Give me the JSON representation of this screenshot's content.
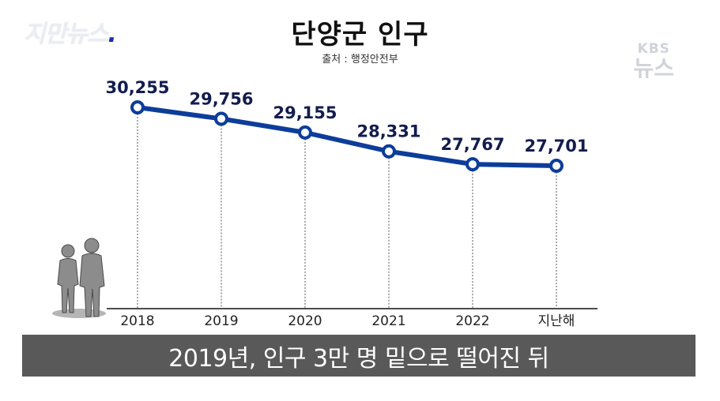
{
  "overlay": {
    "program_logo": "지만뉴스",
    "broadcaster": "KBS",
    "broadcaster_sub": "뉴스"
  },
  "header": {
    "title": "단양군 인구",
    "source": "출처 : 행정안전부"
  },
  "caption": "2019년, 인구 3만 명 밑으로 떨어진 뒤",
  "colors": {
    "line": "#0d3d9a",
    "label": "#121c4e",
    "caption_bg": "#595959"
  },
  "chart_data": {
    "type": "line",
    "categories": [
      "2018",
      "2019",
      "2020",
      "2021",
      "2022",
      "지난해"
    ],
    "values": [
      30255,
      29756,
      29155,
      28331,
      27767,
      27701
    ],
    "value_labels": [
      "30,255",
      "29,756",
      "29,155",
      "28,331",
      "27,767",
      "27,701"
    ],
    "title": "단양군 인구",
    "xlabel": "",
    "ylabel": "",
    "grid": false
  }
}
